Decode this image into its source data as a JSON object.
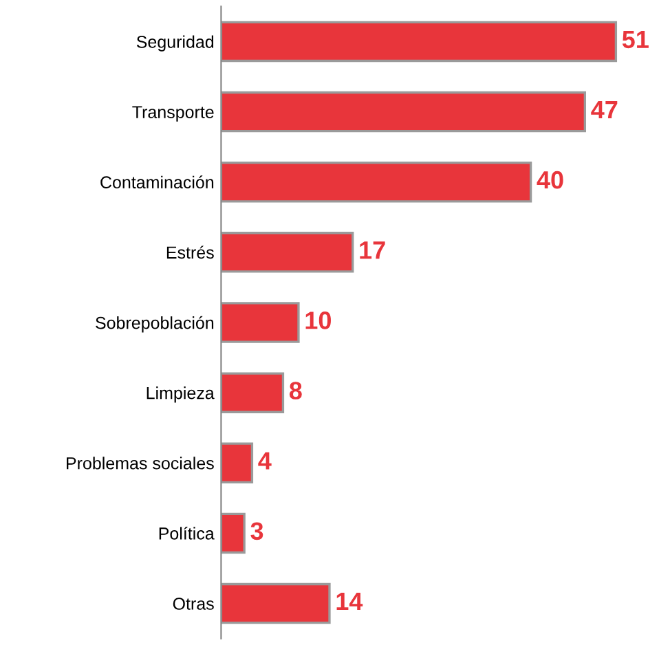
{
  "chart_data": {
    "type": "bar",
    "orientation": "horizontal",
    "categories": [
      "Seguridad",
      "Transporte",
      "Contaminación",
      "Estrés",
      "Sobrepoblación",
      "Limpieza",
      "Problemas sociales",
      "Política",
      "Otras"
    ],
    "values": [
      51,
      47,
      40,
      17,
      10,
      8,
      4,
      3,
      14
    ],
    "color": "#e8353b",
    "data_labels": true,
    "grid": false,
    "legend": false,
    "tick_labels": "y"
  }
}
